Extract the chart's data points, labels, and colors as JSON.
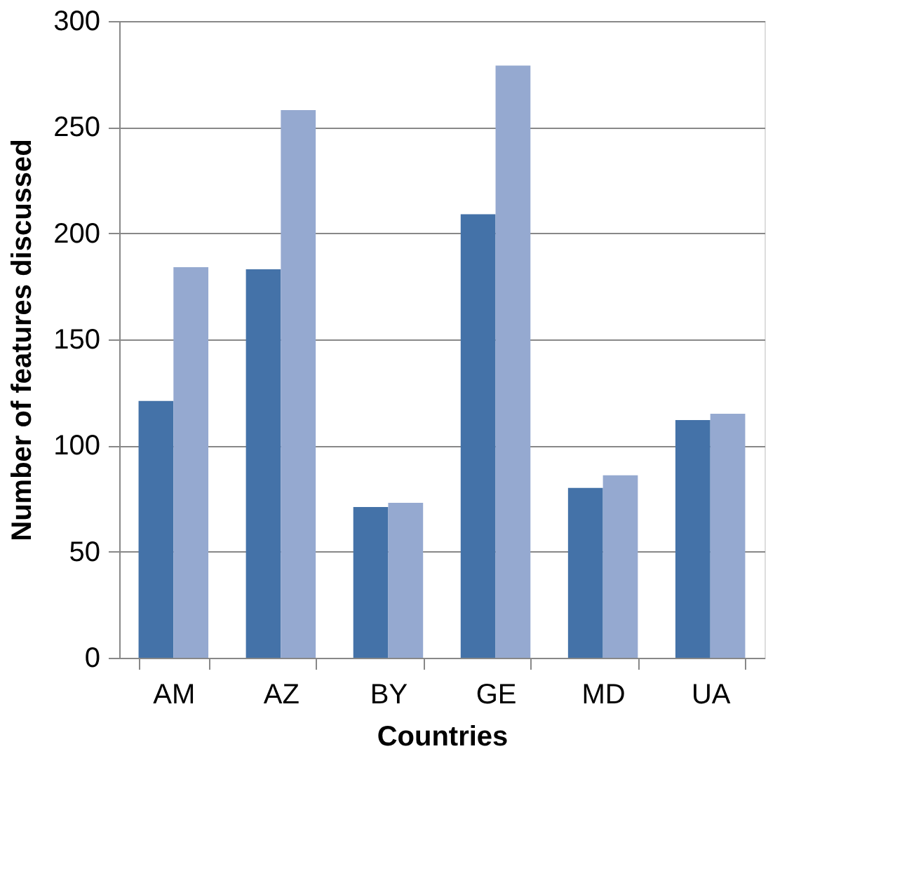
{
  "chart_data": {
    "type": "bar",
    "xlabel": "Countries",
    "ylabel": "Number of features discussed",
    "categories": [
      "AM",
      "AZ",
      "BY",
      "GE",
      "MD",
      "UA"
    ],
    "series": [
      {
        "color": "#4472a8",
        "values": [
          121,
          183,
          71,
          209,
          80,
          112
        ]
      },
      {
        "color": "#95a9d0",
        "values": [
          184,
          258,
          73,
          279,
          86,
          115
        ]
      }
    ],
    "ylim": [
      0,
      300
    ],
    "yticks": [
      0,
      50,
      100,
      150,
      200,
      250,
      300
    ],
    "grid": "y",
    "legend": false
  }
}
